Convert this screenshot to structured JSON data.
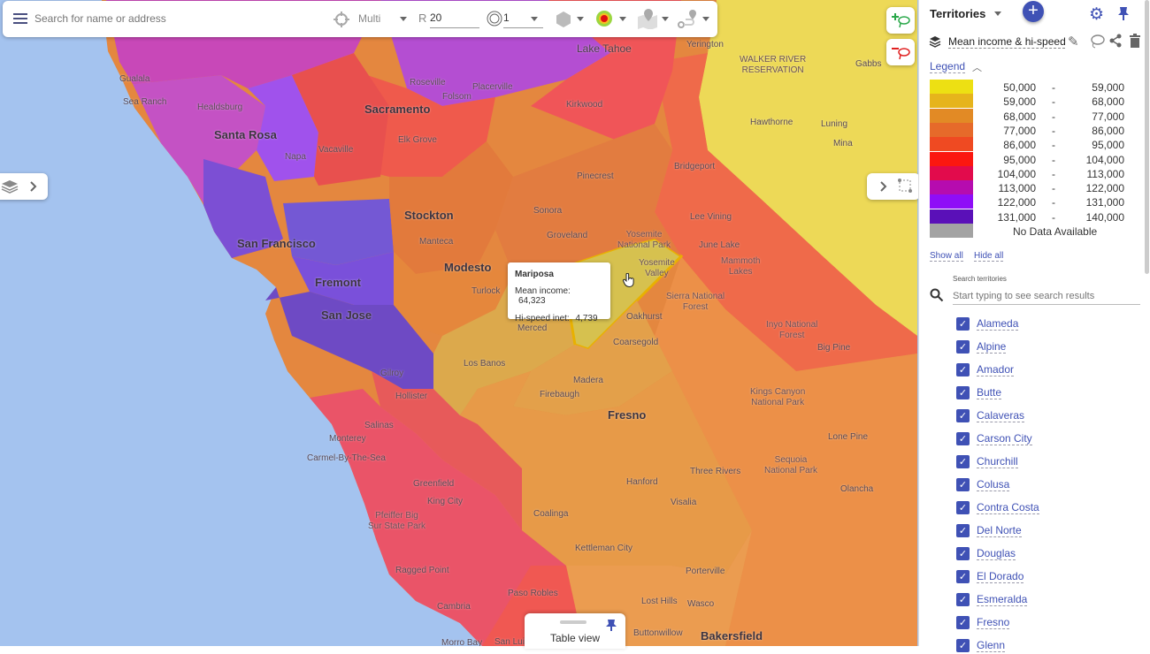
{
  "toolbar": {
    "search_placeholder": "Search for name or address",
    "mode": "Multi",
    "radius_label": "R",
    "radius_value": "20",
    "ring_value": "1",
    "icons": [
      "menu-icon",
      "crosshair-icon",
      "ring-icon",
      "hexagon-icon",
      "heatmap-icon",
      "map-pin-icon",
      "route-icon"
    ]
  },
  "map": {
    "places": [
      {
        "t": "Lake Tahoe",
        "c": "city"
      },
      {
        "t": "Yerington",
        "c": ""
      },
      {
        "t": "Gualala",
        "c": ""
      },
      {
        "t": "Roseville",
        "c": ""
      },
      {
        "t": "Placerville",
        "c": ""
      },
      {
        "t": "Sacramento",
        "c": "big"
      },
      {
        "t": "Folsom",
        "c": ""
      },
      {
        "t": "Kirkwood",
        "c": ""
      },
      {
        "t": "WALKER RIVER\nRESERVATION",
        "c": "park"
      },
      {
        "t": "Gabbs",
        "c": ""
      },
      {
        "t": "Hawthorne",
        "c": ""
      },
      {
        "t": "Luning",
        "c": ""
      },
      {
        "t": "Mina",
        "c": ""
      },
      {
        "t": "Sea Ranch",
        "c": ""
      },
      {
        "t": "Healdsburg",
        "c": ""
      },
      {
        "t": "Santa Rosa",
        "c": "big"
      },
      {
        "t": "Napa",
        "c": ""
      },
      {
        "t": "Vacaville",
        "c": ""
      },
      {
        "t": "Elk Grove",
        "c": ""
      },
      {
        "t": "Bridgeport",
        "c": ""
      },
      {
        "t": "Pinecrest",
        "c": ""
      },
      {
        "t": "Stockton",
        "c": "big"
      },
      {
        "t": "Sonora",
        "c": ""
      },
      {
        "t": "Lee Vining",
        "c": ""
      },
      {
        "t": "San Francisco",
        "c": "big"
      },
      {
        "t": "Manteca",
        "c": ""
      },
      {
        "t": "Groveland",
        "c": ""
      },
      {
        "t": "Yosemite\nNational Park",
        "c": "park"
      },
      {
        "t": "June Lake",
        "c": ""
      },
      {
        "t": "Mammoth\nLakes",
        "c": "park"
      },
      {
        "t": "Modesto",
        "c": "big"
      },
      {
        "t": "Fremont",
        "c": "big"
      },
      {
        "t": "Turlock",
        "c": ""
      },
      {
        "t": "Yosemite\nValley",
        "c": "park"
      },
      {
        "t": "Merced",
        "c": ""
      },
      {
        "t": "Oakhurst",
        "c": ""
      },
      {
        "t": "Sierra National\nForest",
        "c": "park"
      },
      {
        "t": "Inyo National\nForest",
        "c": "park"
      },
      {
        "t": "San Jose",
        "c": "big"
      },
      {
        "t": "Coarsegold",
        "c": ""
      },
      {
        "t": "Big Pine",
        "c": ""
      },
      {
        "t": "Los Banos",
        "c": ""
      },
      {
        "t": "Gilroy",
        "c": ""
      },
      {
        "t": "Madera",
        "c": ""
      },
      {
        "t": "Firebaugh",
        "c": ""
      },
      {
        "t": "Fresno",
        "c": "big"
      },
      {
        "t": "Hollister",
        "c": ""
      },
      {
        "t": "Kings Canyon\nNational Park",
        "c": "park"
      },
      {
        "t": "Monterey",
        "c": ""
      },
      {
        "t": "Salinas",
        "c": ""
      },
      {
        "t": "Carmel-By-The-Sea",
        "c": ""
      },
      {
        "t": "Lone Pine",
        "c": ""
      },
      {
        "t": "Three Rivers",
        "c": ""
      },
      {
        "t": "Greenfield",
        "c": ""
      },
      {
        "t": "King City",
        "c": ""
      },
      {
        "t": "Hanford",
        "c": ""
      },
      {
        "t": "Visalia",
        "c": ""
      },
      {
        "t": "Sequoia\nNational Park",
        "c": "park"
      },
      {
        "t": "Olancha",
        "c": ""
      },
      {
        "t": "Pfeiffer Big\nSur State Park",
        "c": "park"
      },
      {
        "t": "Coalinga",
        "c": ""
      },
      {
        "t": "Kettleman City",
        "c": ""
      },
      {
        "t": "Ragged Point",
        "c": ""
      },
      {
        "t": "Porterville",
        "c": ""
      },
      {
        "t": "Paso Robles",
        "c": ""
      },
      {
        "t": "Cambria",
        "c": ""
      },
      {
        "t": "Lost Hills",
        "c": ""
      },
      {
        "t": "Wasco",
        "c": ""
      },
      {
        "t": "Buttonwillow",
        "c": ""
      },
      {
        "t": "Bakersfield",
        "c": "big"
      },
      {
        "t": "Morro Bay",
        "c": ""
      },
      {
        "t": "San Luis",
        "c": ""
      }
    ],
    "tooltip": {
      "name": "Mariposa",
      "income_label": "Mean income:",
      "income_value": "64,323",
      "inet_label": "Hi-speed inet:",
      "inet_value": "4,739"
    },
    "table_view_label": "Table view"
  },
  "panel": {
    "title": "Territories",
    "layer_name": "Mean income & hi-speed inet",
    "legend_label": "Legend",
    "legend": [
      {
        "from": "50,000",
        "to": "59,000",
        "color": "#ede013"
      },
      {
        "from": "59,000",
        "to": "68,000",
        "color": "#e6b41c"
      },
      {
        "from": "68,000",
        "to": "77,000",
        "color": "#e28a25"
      },
      {
        "from": "77,000",
        "to": "86,000",
        "color": "#e66a2a"
      },
      {
        "from": "86,000",
        "to": "95,000",
        "color": "#ef4a22"
      },
      {
        "from": "95,000",
        "to": "104,000",
        "color": "#fb1710"
      },
      {
        "from": "104,000",
        "to": "113,000",
        "color": "#e20b4c"
      },
      {
        "from": "113,000",
        "to": "122,000",
        "color": "#b60caf"
      },
      {
        "from": "122,000",
        "to": "131,000",
        "color": "#8f0df7"
      },
      {
        "from": "131,000",
        "to": "140,000",
        "color": "#5a10b8"
      }
    ],
    "no_data": {
      "label": "No Data Available",
      "color": "#a3a3a3"
    },
    "dash": "-",
    "show_all": "Show all",
    "hide_all": "Hide all",
    "search_label": "Search territories",
    "search_placeholder": "Start typing to see search results",
    "territories": [
      "Alameda",
      "Alpine",
      "Amador",
      "Butte",
      "Calaveras",
      "Carson City",
      "Churchill",
      "Colusa",
      "Contra Costa",
      "Del Norte",
      "Douglas",
      "El Dorado",
      "Esmeralda",
      "Fresno",
      "Glenn"
    ]
  },
  "colors": {
    "accent": "#3f51b5"
  }
}
